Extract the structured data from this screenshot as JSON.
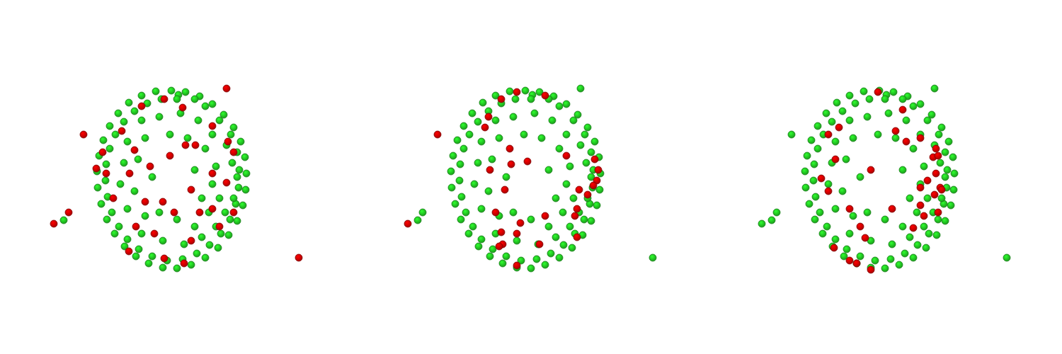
{
  "chart_data": [
    {
      "type": "scatter",
      "xlim": [
        0,
        500
      ],
      "ylim": [
        500,
        0
      ],
      "tick_labels": false,
      "series": [
        {
          "color": "#22c422",
          "x": [
            242,
            262,
            282,
            300,
            316,
            330,
            340,
            346,
            348,
            347,
            343,
            335,
            323,
            308,
            290,
            270,
            250,
            230,
            210,
            192,
            176,
            162,
            151,
            143,
            138,
            137,
            140,
            146,
            155,
            167,
            182,
            200,
            220,
            252,
            275,
            335,
            250,
            290,
            310,
            326,
            335,
            338,
            337,
            333,
            325,
            312,
            296,
            278,
            258,
            236,
            215,
            196,
            180,
            168,
            158,
            152,
            149,
            150,
            155,
            163,
            175,
            190,
            208,
            228,
            320,
            328,
            330,
            318,
            305,
            200,
            225,
            255,
            280,
            300,
            180,
            205,
            290,
            305,
            175,
            195,
            300,
            170,
            190,
            285,
            295,
            180,
            205,
            225,
            250,
            275,
            200,
            230,
            260,
            285,
            240,
            265,
            215,
            275,
            310,
            90
          ],
          "values": [
            128,
            130,
            136,
            147,
            162,
            180,
            200,
            222,
            245,
            268,
            290,
            312,
            332,
            350,
            364,
            374,
            379,
            378,
            372,
            362,
            348,
            330,
            310,
            288,
            265,
            242,
            220,
            198,
            178,
            160,
            145,
            135,
            129,
            134,
            140,
            250,
            140,
            150,
            170,
            190,
            215,
            240,
            265,
            288,
            310,
            330,
            346,
            358,
            366,
            368,
            362,
            352,
            338,
            320,
            300,
            278,
            255,
            232,
            210,
            190,
            172,
            157,
            146,
            140,
            205,
            230,
            280,
            300,
            320,
            170,
            165,
            160,
            170,
            190,
            200,
            195,
            210,
            235,
            230,
            225,
            260,
            260,
            270,
            280,
            300,
            295,
            305,
            300,
            310,
            320,
            330,
            340,
            345,
            335,
            190,
            195,
            250,
            240,
            280,
            311
          ]
        },
        {
          "color": "#cc0000",
          "x": [
            200,
            232,
            258,
            300,
            322,
            145,
            136,
            172,
            190,
            262,
            276,
            212,
            240,
            183,
            300,
            330,
            320,
            270,
            230,
            160,
            205,
            246,
            282,
            300,
            192,
            218,
            270,
            310,
            182,
            232,
            260,
            330,
            150,
            320,
            118,
            97,
            76,
            422
          ],
          "values": [
            150,
            140,
            152,
            178,
            200,
            215,
            238,
            185,
            212,
            205,
            205,
            235,
            220,
            245,
            245,
            215,
            258,
            268,
            285,
            280,
            285,
            300,
            300,
            295,
            320,
            330,
            340,
            320,
            355,
            365,
            372,
            300,
            245,
            125,
            190,
            300,
            316,
            364
          ]
        }
      ]
    },
    {
      "type": "scatter",
      "xlim": [
        0,
        500
      ],
      "ylim": [
        500,
        0
      ],
      "tick_labels": false,
      "series": [
        {
          "color": "#22c422",
          "x": [
            242,
            262,
            282,
            300,
            316,
            330,
            340,
            346,
            348,
            347,
            343,
            335,
            323,
            308,
            290,
            270,
            250,
            230,
            210,
            192,
            176,
            162,
            151,
            143,
            138,
            137,
            140,
            146,
            155,
            167,
            182,
            200,
            220,
            252,
            275,
            335,
            250,
            290,
            310,
            326,
            335,
            338,
            337,
            333,
            325,
            312,
            296,
            278,
            258,
            236,
            215,
            196,
            180,
            168,
            158,
            152,
            149,
            150,
            155,
            163,
            175,
            190,
            208,
            228,
            320,
            328,
            330,
            318,
            305,
            200,
            225,
            255,
            280,
            300,
            180,
            205,
            290,
            305,
            175,
            195,
            300,
            170,
            190,
            285,
            295,
            180,
            205,
            225,
            250,
            275,
            200,
            230,
            260,
            285,
            240,
            265,
            215,
            275,
            310,
            320,
            97,
            90,
            422
          ],
          "values": [
            128,
            130,
            136,
            147,
            162,
            180,
            200,
            222,
            245,
            268,
            290,
            312,
            332,
            350,
            364,
            374,
            379,
            378,
            372,
            362,
            348,
            330,
            310,
            288,
            265,
            242,
            220,
            198,
            178,
            160,
            145,
            135,
            129,
            134,
            140,
            250,
            140,
            150,
            170,
            190,
            215,
            240,
            265,
            288,
            310,
            330,
            346,
            358,
            366,
            368,
            362,
            352,
            338,
            320,
            300,
            278,
            255,
            232,
            210,
            190,
            172,
            157,
            146,
            140,
            205,
            230,
            280,
            300,
            320,
            170,
            165,
            160,
            170,
            190,
            200,
            195,
            210,
            235,
            230,
            225,
            260,
            260,
            270,
            280,
            300,
            295,
            305,
            300,
            310,
            320,
            330,
            340,
            345,
            335,
            190,
            195,
            250,
            240,
            280,
            125,
            300,
            311,
            364
          ]
        },
        {
          "color": "#cc0000",
          "x": [
            230,
            270,
            208,
            340,
            343,
            330,
            338,
            318,
            345,
            315,
            312,
            220,
            245,
            222,
            300,
            192,
            213,
            200,
            230,
            262,
            270,
            208,
            210,
            205,
            230,
            315,
            235,
            190,
            185,
            118,
            76
          ],
          "values": [
            130,
            135,
            140,
            225,
            255,
            275,
            262,
            268,
            240,
            295,
            305,
            210,
            228,
            232,
            220,
            240,
            268,
            300,
            330,
            345,
            305,
            328,
            345,
            348,
            375,
            335,
            315,
            165,
            180,
            190,
            316
          ]
        }
      ]
    },
    {
      "type": "scatter",
      "xlim": [
        0,
        500
      ],
      "ylim": [
        500,
        0
      ],
      "tick_labels": false,
      "series": [
        {
          "color": "#22c422",
          "x": [
            242,
            262,
            282,
            300,
            316,
            330,
            340,
            346,
            348,
            347,
            343,
            335,
            323,
            308,
            290,
            270,
            250,
            230,
            210,
            192,
            176,
            162,
            151,
            143,
            138,
            137,
            140,
            146,
            155,
            167,
            182,
            200,
            220,
            252,
            275,
            335,
            250,
            290,
            310,
            326,
            335,
            338,
            337,
            333,
            325,
            312,
            296,
            278,
            258,
            236,
            215,
            196,
            180,
            168,
            158,
            152,
            149,
            150,
            155,
            163,
            175,
            190,
            208,
            228,
            320,
            328,
            330,
            318,
            305,
            200,
            225,
            255,
            280,
            300,
            180,
            205,
            290,
            305,
            175,
            195,
            300,
            170,
            190,
            285,
            295,
            180,
            205,
            225,
            250,
            275,
            200,
            230,
            260,
            285,
            240,
            265,
            215,
            275,
            310,
            320,
            118,
            97,
            90,
            76,
            422
          ],
          "values": [
            128,
            130,
            136,
            147,
            162,
            180,
            200,
            222,
            245,
            268,
            290,
            312,
            332,
            350,
            364,
            374,
            379,
            378,
            372,
            362,
            348,
            330,
            310,
            288,
            265,
            242,
            220,
            198,
            178,
            160,
            145,
            135,
            129,
            134,
            140,
            250,
            140,
            150,
            170,
            190,
            215,
            240,
            265,
            288,
            310,
            330,
            346,
            358,
            366,
            368,
            362,
            352,
            338,
            320,
            300,
            278,
            255,
            232,
            210,
            190,
            172,
            157,
            146,
            140,
            205,
            230,
            280,
            300,
            320,
            170,
            165,
            160,
            170,
            190,
            200,
            195,
            210,
            235,
            230,
            225,
            260,
            260,
            270,
            280,
            300,
            295,
            305,
            300,
            310,
            320,
            330,
            340,
            345,
            335,
            190,
            195,
            250,
            240,
            280,
            125,
            190,
            300,
            311,
            316,
            364
          ]
        },
        {
          "color": "#cc0000",
          "x": [
            240,
            275,
            265,
            300,
            322,
            318,
            325,
            322,
            310,
            328,
            330,
            320,
            305,
            300,
            290,
            325,
            280,
            230,
            170,
            180,
            160,
            200,
            260,
            215,
            222,
            210,
            200,
            230,
            178,
            170,
            185,
            300
          ],
          "values": [
            130,
            155,
            185,
            195,
            210,
            222,
            220,
            245,
            255,
            265,
            268,
            275,
            305,
            290,
            322,
            300,
            200,
            240,
            270,
            225,
            252,
            295,
            295,
            320,
            336,
            372,
            368,
            381,
            350,
            190,
            180,
            265
          ]
        }
      ]
    }
  ]
}
